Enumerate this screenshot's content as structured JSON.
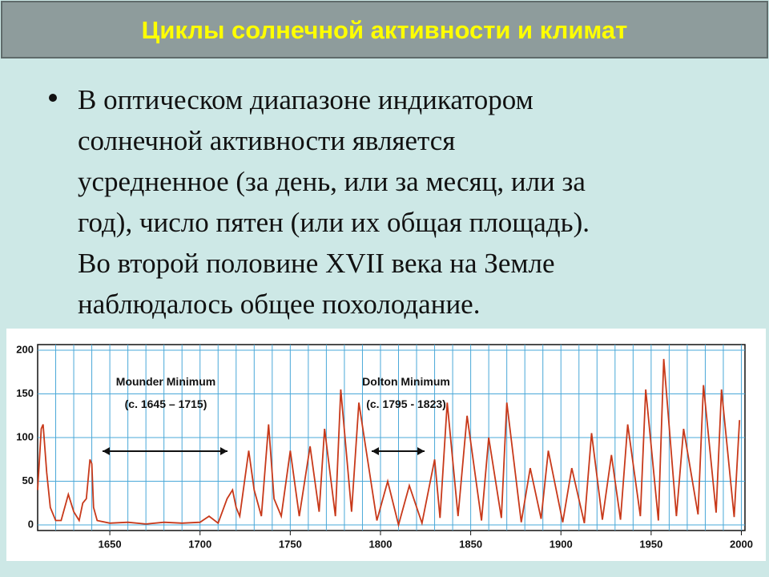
{
  "slide": {
    "title": "Циклы солнечной активности и климат",
    "bullet_lines": [
      "В оптическом диапазоне индикатором",
      "солнечной активности является",
      "усредненное (за день, или за месяц, или за",
      "год), число пятен (или их общая площадь).",
      "Во второй половине XVII века на Земле",
      "наблюдалось общее похолодание."
    ]
  },
  "chart_data": {
    "type": "line",
    "color": "#c8391a",
    "annotations": [
      "Mounder Minimum",
      "(c. 1645 – 1715)",
      "Dolton Minimum",
      "(c. 1795 - 1823)"
    ],
    "x": [
      1610,
      1612,
      1613,
      1615,
      1617,
      1620,
      1623,
      1625,
      1627,
      1630,
      1633,
      1635,
      1637,
      1639,
      1640,
      1641,
      1643,
      1650,
      1660,
      1670,
      1680,
      1690,
      1700,
      1705,
      1710,
      1715,
      1718,
      1720,
      1722,
      1727,
      1730,
      1734,
      1738,
      1741,
      1745,
      1750,
      1755,
      1761,
      1766,
      1769,
      1775,
      1778,
      1784,
      1788,
      1798,
      1804,
      1810,
      1816,
      1823,
      1830,
      1833,
      1837,
      1843,
      1848,
      1856,
      1860,
      1867,
      1870,
      1878,
      1883,
      1889,
      1893,
      1901,
      1906,
      1913,
      1917,
      1923,
      1928,
      1933,
      1937,
      1944,
      1947,
      1954,
      1957,
      1964,
      1968,
      1976,
      1979,
      1986,
      1989,
      1996,
      1999
    ],
    "values": [
      40,
      110,
      115,
      60,
      20,
      5,
      5,
      20,
      35,
      15,
      5,
      25,
      30,
      75,
      70,
      20,
      5,
      2,
      3,
      1,
      3,
      2,
      3,
      10,
      2,
      30,
      40,
      20,
      10,
      85,
      40,
      10,
      115,
      30,
      10,
      85,
      10,
      90,
      15,
      110,
      10,
      155,
      15,
      140,
      5,
      50,
      0,
      45,
      2,
      75,
      8,
      140,
      10,
      125,
      5,
      100,
      8,
      140,
      3,
      65,
      7,
      85,
      3,
      65,
      2,
      105,
      6,
      80,
      6,
      115,
      10,
      155,
      5,
      190,
      10,
      110,
      12,
      160,
      14,
      155,
      9,
      120
    ],
    "xlim": [
      1610,
      2002
    ],
    "ylim": [
      0,
      200
    ],
    "xticks": [
      1650,
      1700,
      1750,
      1800,
      1850,
      1900,
      1950,
      2000
    ],
    "yticks": [
      0,
      50,
      100,
      150,
      200
    ],
    "grid": true
  }
}
